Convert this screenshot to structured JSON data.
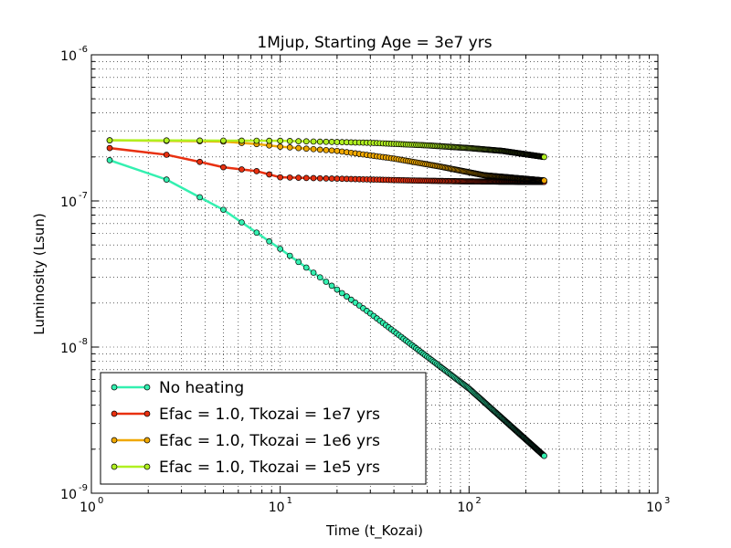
{
  "chart_data": {
    "type": "line",
    "title": "1Mjup, Starting Age = 3e7 yrs",
    "xlabel": "Time (t_Kozai)",
    "ylabel": "Luminosity (Lsun)",
    "xscale": "log",
    "yscale": "log",
    "xlim": [
      1,
      1000
    ],
    "ylim": [
      1e-09,
      1e-06
    ],
    "grid": true,
    "legend_position": "bottom-left",
    "x_ticks": [
      {
        "value": 1,
        "base": "10",
        "exp": "0"
      },
      {
        "value": 10,
        "base": "10",
        "exp": "1"
      },
      {
        "value": 100,
        "base": "10",
        "exp": "2"
      },
      {
        "value": 1000,
        "base": "10",
        "exp": "3"
      }
    ],
    "y_ticks": [
      {
        "value": 1e-09,
        "base": "10",
        "exp": "-9"
      },
      {
        "value": 1e-08,
        "base": "10",
        "exp": "-8"
      },
      {
        "value": 1e-07,
        "base": "10",
        "exp": "-7"
      },
      {
        "value": 1e-06,
        "base": "10",
        "exp": "-6"
      }
    ],
    "series": [
      {
        "name": "No heating",
        "color": "#33f0b0",
        "x_start": 1.25,
        "x_end": 250,
        "n_points": 200,
        "anchors": [
          [
            1.25,
            1.9e-07
          ],
          [
            2.5,
            1.4e-07
          ],
          [
            5,
            8.7e-08
          ],
          [
            10,
            4.7e-08
          ],
          [
            30,
            1.7e-08
          ],
          [
            100,
            5.2e-09
          ],
          [
            250,
            1.8e-09
          ]
        ]
      },
      {
        "name": "Efac = 1.0, Tkozai = 1e7 yrs",
        "color": "#e83010",
        "x_start": 1.25,
        "x_end": 250,
        "n_points": 200,
        "anchors": [
          [
            1.25,
            2.3e-07
          ],
          [
            2.5,
            2.07e-07
          ],
          [
            3.75,
            1.85e-07
          ],
          [
            5,
            1.7e-07
          ],
          [
            7.5,
            1.6e-07
          ],
          [
            10,
            1.45e-07
          ],
          [
            20,
            1.42e-07
          ],
          [
            50,
            1.38e-07
          ],
          [
            100,
            1.36e-07
          ],
          [
            250,
            1.35e-07
          ]
        ]
      },
      {
        "name": "Efac = 1.0, Tkozai = 1e6 yrs",
        "color": "#f0a800",
        "x_start": 1.25,
        "x_end": 250,
        "n_points": 200,
        "anchors": [
          [
            1.25,
            2.6e-07
          ],
          [
            5,
            2.55e-07
          ],
          [
            7.5,
            2.45e-07
          ],
          [
            10,
            2.35e-07
          ],
          [
            20,
            2.2e-07
          ],
          [
            40,
            1.95e-07
          ],
          [
            70,
            1.72e-07
          ],
          [
            120,
            1.5e-07
          ],
          [
            250,
            1.38e-07
          ]
        ]
      },
      {
        "name": "Efac = 1.0, Tkozai = 1e5 yrs",
        "color": "#b0f020",
        "x_start": 1.25,
        "x_end": 250,
        "n_points": 200,
        "anchors": [
          [
            1.25,
            2.6e-07
          ],
          [
            10,
            2.58e-07
          ],
          [
            30,
            2.5e-07
          ],
          [
            60,
            2.4e-07
          ],
          [
            100,
            2.3e-07
          ],
          [
            150,
            2.2e-07
          ],
          [
            250,
            2e-07
          ]
        ]
      }
    ]
  }
}
